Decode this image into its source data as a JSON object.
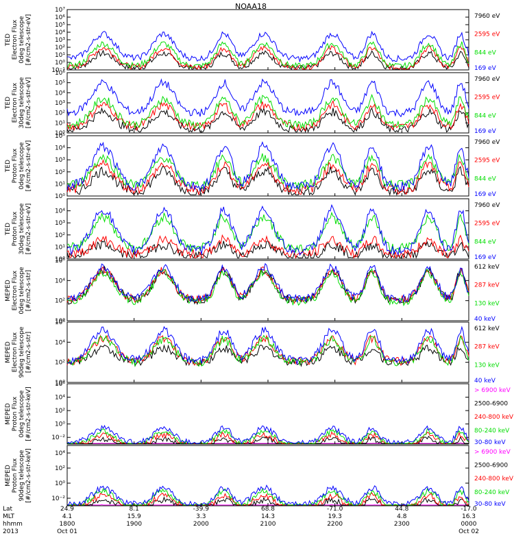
{
  "title": "NOAA18",
  "colors": {
    "black": "#000000",
    "red": "#ff0000",
    "green": "#00dd00",
    "blue": "#0000ff",
    "magenta": "#ff00ff"
  },
  "chart_data": [
    {
      "type": "line",
      "id": "ted-e-0",
      "ylabel": [
        "TED",
        "Electron Flux",
        "0deg telescope",
        "[#/cm2-s-str-eV]"
      ],
      "ylim": [
        0.1,
        10000000.0
      ],
      "ylog": true,
      "yticks": [
        0.1,
        1,
        10,
        100,
        1000,
        10000,
        100000,
        1000000,
        10000000
      ],
      "ytick_labels": [
        "10⁻¹",
        "10⁰",
        "10¹",
        "10²",
        "10³",
        "10⁴",
        "10⁵",
        "10⁶",
        "10⁷"
      ],
      "series": [
        {
          "name": "7960 eV",
          "color": "#000000",
          "base": 0.2,
          "amp": 2.0
        },
        {
          "name": "2595 eV",
          "color": "#ff0000",
          "base": 0.3,
          "amp": 2.6
        },
        {
          "name": "844 eV",
          "color": "#00dd00",
          "base": 0.5,
          "amp": 3.0
        },
        {
          "name": "169 eV",
          "color": "#0000ff",
          "base": 1.5,
          "amp": 3.3
        }
      ]
    },
    {
      "type": "line",
      "id": "ted-e-90",
      "ylabel": [
        "TED",
        "Electron Flux",
        "30deg telescope",
        "[#/cm2-s-str-eV]"
      ],
      "ylim": [
        1,
        1000000.0
      ],
      "ylog": true,
      "yticks": [
        1,
        10,
        100,
        1000,
        10000,
        100000,
        1000000
      ],
      "ytick_labels": [
        "10⁰",
        "10¹",
        "10²",
        "10³",
        "10⁴",
        "10⁵",
        "10⁶"
      ],
      "series": [
        {
          "name": "7960 eV",
          "color": "#000000",
          "base": 0.3,
          "amp": 1.8
        },
        {
          "name": "2595 eV",
          "color": "#ff0000",
          "base": 0.6,
          "amp": 2.2
        },
        {
          "name": "844 eV",
          "color": "#00dd00",
          "base": 0.8,
          "amp": 2.6
        },
        {
          "name": "169 eV",
          "color": "#0000ff",
          "base": 2.0,
          "amp": 3.0
        }
      ]
    },
    {
      "type": "line",
      "id": "ted-p-0",
      "ylabel": [
        "TED",
        "Proton Flux",
        "0deg telescope",
        "[#/cm2-s-str-eV]"
      ],
      "ylim": [
        1,
        100000.0
      ],
      "ylog": true,
      "yticks": [
        1,
        10,
        100,
        1000,
        10000,
        100000
      ],
      "ytick_labels": [
        "10⁰",
        "10¹",
        "10²",
        "10³",
        "10⁴",
        "10⁵"
      ],
      "series": [
        {
          "name": "7960 eV",
          "color": "#000000",
          "base": 0.3,
          "amp": 1.8
        },
        {
          "name": "2595 eV",
          "color": "#ff0000",
          "base": 0.5,
          "amp": 2.1
        },
        {
          "name": "844 eV",
          "color": "#00dd00",
          "base": 0.9,
          "amp": 2.3
        },
        {
          "name": "169 eV",
          "color": "#0000ff",
          "base": 0.8,
          "amp": 3.3
        }
      ]
    },
    {
      "type": "line",
      "id": "ted-p-90",
      "ylabel": [
        "TED",
        "Proton Flux",
        "30deg telescope",
        "[#/cm2-s-str-eV]"
      ],
      "ylim": [
        1,
        100000.0
      ],
      "ylog": true,
      "yticks": [
        1,
        10,
        100,
        1000,
        10000
      ],
      "ytick_labels": [
        "10⁰",
        "10¹",
        "10²",
        "10³",
        "10⁴"
      ],
      "series": [
        {
          "name": "7960 eV",
          "color": "#000000",
          "base": 0.2,
          "amp": 1.0
        },
        {
          "name": "2595 eV",
          "color": "#ff0000",
          "base": 0.4,
          "amp": 1.2
        },
        {
          "name": "844 eV",
          "color": "#00dd00",
          "base": 0.9,
          "amp": 2.6
        },
        {
          "name": "169 eV",
          "color": "#0000ff",
          "base": 0.7,
          "amp": 3.4
        }
      ]
    },
    {
      "type": "line",
      "id": "meped-e-0",
      "ylabel": [
        "MEPED",
        "Electron Flux",
        "0deg telescope",
        "[#/cm2-s-str]"
      ],
      "ylim": [
        1,
        1000000.0
      ],
      "ylog": true,
      "yticks": [
        1,
        100,
        10000,
        1000000
      ],
      "ytick_labels": [
        "10⁰",
        "10²",
        "10⁴",
        "10⁶"
      ],
      "series": [
        {
          "name": "612 keV",
          "color": "#000000",
          "base": 2.0,
          "amp": 3.0
        },
        {
          "name": "287 keV",
          "color": "#ff0000",
          "base": 2.1,
          "amp": 2.9
        },
        {
          "name": "130 keV",
          "color": "#00dd00",
          "base": 1.9,
          "amp": 2.9
        },
        {
          "name": "40 keV",
          "color": "#0000ff",
          "base": 2.2,
          "amp": 3.1
        }
      ]
    },
    {
      "type": "line",
      "id": "meped-e-90",
      "ylabel": [
        "MEPED",
        "Electron Flux",
        "90deg telescope",
        "[#/cm2-s-str]"
      ],
      "ylim": [
        1,
        1000000.0
      ],
      "ylog": true,
      "yticks": [
        1,
        100,
        10000,
        1000000
      ],
      "ytick_labels": [
        "10⁰",
        "10²",
        "10⁴",
        "10⁶"
      ],
      "series": [
        {
          "name": "612 keV",
          "color": "#000000",
          "base": 2.0,
          "amp": 1.4
        },
        {
          "name": "287 keV",
          "color": "#ff0000",
          "base": 2.1,
          "amp": 2.3
        },
        {
          "name": "130 keV",
          "color": "#00dd00",
          "base": 2.0,
          "amp": 2.3
        },
        {
          "name": "40 keV",
          "color": "#0000ff",
          "base": 2.2,
          "amp": 3.0
        }
      ]
    },
    {
      "type": "line",
      "id": "meped-p-0",
      "ylabel": [
        "MEPED",
        "Proton Flux",
        "0deg telescope",
        "[#/cm2-s-str-keV]"
      ],
      "ylim": [
        0.001,
        1000000.0
      ],
      "ylog": true,
      "yticks": [
        0.01,
        1,
        100,
        10000,
        1000000
      ],
      "ytick_labels": [
        "10⁻²",
        "10⁰",
        "10²",
        "10⁴",
        "10⁶"
      ],
      "series": [
        {
          "name": "> 6900 keV",
          "color": "#ff00ff",
          "base": -1.2,
          "amp": 1.0
        },
        {
          "name": "2500-6900",
          "color": "#000000",
          "base": -0.5,
          "amp": 1.3
        },
        {
          "name": "240-800 keV",
          "color": "#ff0000",
          "base": -0.3,
          "amp": 1.7
        },
        {
          "name": "80-240 keV",
          "color": "#00dd00",
          "base": -0.1,
          "amp": 2.0
        },
        {
          "name": "30-80 keV",
          "color": "#0000ff",
          "base": 0.2,
          "amp": 2.2
        }
      ]
    },
    {
      "type": "line",
      "id": "meped-p-90",
      "ylabel": [
        "MEPED",
        "Proton Flux",
        "90deg telescope",
        "[#/cm2-s-str-keV]"
      ],
      "ylim": [
        0.001,
        100000.0
      ],
      "ylog": true,
      "yticks": [
        0.01,
        1,
        100,
        10000
      ],
      "ytick_labels": [
        "10⁻²",
        "10⁰",
        "10²",
        "10⁴"
      ],
      "series": [
        {
          "name": "> 6900 keV",
          "color": "#ff00ff",
          "base": -1.2,
          "amp": 1.0
        },
        {
          "name": "2500-6900",
          "color": "#000000",
          "base": -0.5,
          "amp": 1.3
        },
        {
          "name": "240-800 keV",
          "color": "#ff0000",
          "base": -0.3,
          "amp": 1.7
        },
        {
          "name": "80-240 keV",
          "color": "#00dd00",
          "base": -0.1,
          "amp": 2.0
        },
        {
          "name": "30-80 keV",
          "color": "#0000ff",
          "base": 0.2,
          "amp": 2.2
        }
      ]
    }
  ],
  "x_axis": {
    "row_labels": [
      "Lat",
      "MLT",
      "hhmm",
      "2013"
    ],
    "ticks": [
      {
        "lat": "24.9",
        "mlt": "4.1",
        "hhmm": "1800",
        "date": "Oct 01"
      },
      {
        "lat": "8.1",
        "mlt": "15.9",
        "hhmm": "1900",
        "date": ""
      },
      {
        "lat": "-39.9",
        "mlt": "3.3",
        "hhmm": "2000",
        "date": ""
      },
      {
        "lat": "68.8",
        "mlt": "14.3",
        "hhmm": "2100",
        "date": ""
      },
      {
        "lat": "-71.0",
        "mlt": "19.3",
        "hhmm": "2200",
        "date": ""
      },
      {
        "lat": "44.8",
        "mlt": "4.8",
        "hhmm": "2300",
        "date": ""
      },
      {
        "lat": "-17.0",
        "mlt": "16.3",
        "hhmm": "0000",
        "date": "Oct 02"
      }
    ]
  }
}
